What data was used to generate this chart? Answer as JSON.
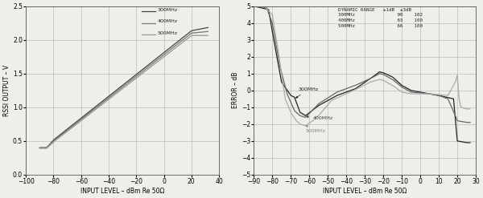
{
  "left_chart": {
    "xlabel": "INPUT LEVEL – dBm Re 50Ω",
    "ylabel": "RSSI OUTPUT – V",
    "xlim": [
      -100,
      40
    ],
    "ylim": [
      0,
      2.5
    ],
    "xticks": [
      -100,
      -80,
      -60,
      -40,
      -20,
      0,
      20,
      40
    ],
    "yticks": [
      0,
      0.5,
      1.0,
      1.5,
      2.0,
      2.5
    ],
    "legend_labels": [
      "300MHz",
      "400MHz",
      "500MHz"
    ],
    "line_colors": [
      "#444444",
      "#777777",
      "#999999"
    ]
  },
  "right_chart": {
    "xlabel": "INPUT LEVEL – dBm Re 50Ω",
    "ylabel": "ERROR – dB",
    "xlim": [
      -90,
      30
    ],
    "ylim": [
      -5,
      5
    ],
    "xticks": [
      -90,
      -80,
      -70,
      -60,
      -50,
      -40,
      -30,
      -20,
      -10,
      0,
      10,
      20,
      30
    ],
    "yticks": [
      -5,
      -4,
      -3,
      -2,
      -1,
      0,
      1,
      2,
      3,
      4,
      5
    ],
    "line_colors": [
      "#222222",
      "#666666",
      "#aaaaaa"
    ]
  },
  "bg_color": "#f0eeea",
  "grid_color": "#bbbbbb"
}
